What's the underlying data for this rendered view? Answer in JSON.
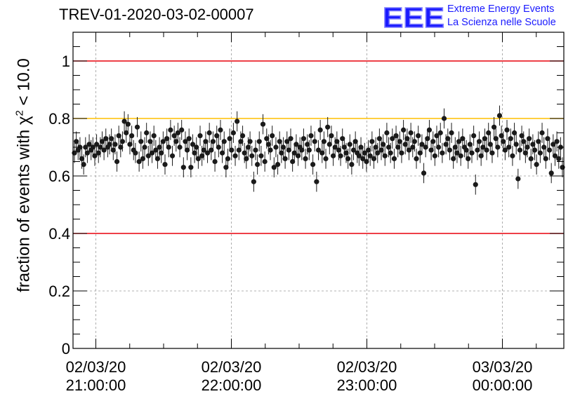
{
  "header": {
    "run_id": "TREV-01-2020-03-02-00007",
    "logo_letters": "EEE",
    "logo_line1": "Extreme Energy Events",
    "logo_line2": "La Scienza nelle Scuole"
  },
  "colors": {
    "threshold_red": "#e8000b",
    "threshold_orange": "#ffbf00",
    "marker": "#1a1a1a",
    "logo_blue": "#1a1aff"
  },
  "chart_data": {
    "type": "scatter",
    "title": "TREV-01-2020-03-02-00007",
    "xlabel": "",
    "ylabel_prefix": "fraction of events with ",
    "ylabel_symbol": "χ",
    "ylabel_exp": "2",
    "ylabel_suffix": " < 10.0",
    "ylim": [
      0,
      1.1
    ],
    "yticks": [
      0,
      0.2,
      0.4,
      0.6,
      0.8,
      1
    ],
    "ytick_labels": [
      "0",
      "0.2",
      "0.4",
      "0.6",
      "0.8",
      "1"
    ],
    "xlim_hours_note": "",
    "xticks": [
      {
        "date": "02/03/20",
        "time": "21:00:00"
      },
      {
        "date": "02/03/20",
        "time": "22:00:00"
      },
      {
        "date": "02/03/20",
        "time": "23:00:00"
      },
      {
        "date": "03/03/20",
        "time": "00:00:00"
      }
    ],
    "grid": true,
    "reference_lines": [
      {
        "y": 1.0,
        "color": "red"
      },
      {
        "y": 0.8,
        "color": "orange"
      },
      {
        "y": 0.4,
        "color": "red"
      }
    ],
    "error": 0.035,
    "x_start": "2020-03-02 20:50",
    "x_end": "2020-03-03 00:30",
    "values": [
      0.68,
      0.72,
      0.69,
      0.7,
      0.66,
      0.64,
      0.7,
      0.68,
      0.71,
      0.69,
      0.7,
      0.67,
      0.71,
      0.68,
      0.7,
      0.72,
      0.69,
      0.73,
      0.7,
      0.71,
      0.73,
      0.69,
      0.71,
      0.65,
      0.74,
      0.7,
      0.72,
      0.79,
      0.75,
      0.78,
      0.71,
      0.74,
      0.69,
      0.68,
      0.77,
      0.65,
      0.72,
      0.66,
      0.7,
      0.75,
      0.67,
      0.72,
      0.68,
      0.74,
      0.69,
      0.66,
      0.7,
      0.68,
      0.72,
      0.64,
      0.73,
      0.7,
      0.76,
      0.67,
      0.74,
      0.72,
      0.75,
      0.7,
      0.76,
      0.63,
      0.72,
      0.69,
      0.73,
      0.63,
      0.71,
      0.68,
      0.7,
      0.66,
      0.74,
      0.67,
      0.69,
      0.72,
      0.68,
      0.75,
      0.69,
      0.72,
      0.65,
      0.74,
      0.7,
      0.76,
      0.68,
      0.72,
      0.63,
      0.66,
      0.73,
      0.69,
      0.75,
      0.67,
      0.79,
      0.69,
      0.72,
      0.74,
      0.68,
      0.66,
      0.7,
      0.72,
      0.67,
      0.58,
      0.69,
      0.64,
      0.72,
      0.67,
      0.78,
      0.65,
      0.73,
      0.71,
      0.69,
      0.74,
      0.63,
      0.7,
      0.64,
      0.72,
      0.68,
      0.7,
      0.66,
      0.72,
      0.69,
      0.73,
      0.65,
      0.68,
      0.71,
      0.67,
      0.7,
      0.69,
      0.73,
      0.66,
      0.71,
      0.69,
      0.74,
      0.64,
      0.72,
      0.58,
      0.69,
      0.76,
      0.68,
      0.72,
      0.66,
      0.77,
      0.71,
      0.74,
      0.67,
      0.7,
      0.72,
      0.69,
      0.67,
      0.73,
      0.7,
      0.68,
      0.66,
      0.71,
      0.64,
      0.69,
      0.72,
      0.68,
      0.67,
      0.7,
      0.66,
      0.68,
      0.65,
      0.69,
      0.67,
      0.72,
      0.66,
      0.7,
      0.68,
      0.73,
      0.69,
      0.71,
      0.67,
      0.75,
      0.7,
      0.68,
      0.73,
      0.66,
      0.74,
      0.7,
      0.72,
      0.68,
      0.76,
      0.71,
      0.73,
      0.69,
      0.75,
      0.7,
      0.72,
      0.66,
      0.74,
      0.68,
      0.71,
      0.61,
      0.7,
      0.73,
      0.76,
      0.69,
      0.72,
      0.67,
      0.74,
      0.7,
      0.75,
      0.68,
      0.8,
      0.71,
      0.73,
      0.69,
      0.75,
      0.66,
      0.7,
      0.68,
      0.72,
      0.67,
      0.73,
      0.7,
      0.69,
      0.66,
      0.71,
      0.68,
      0.74,
      0.57,
      0.69,
      0.72,
      0.67,
      0.7,
      0.73,
      0.69,
      0.75,
      0.71,
      0.68,
      0.77,
      0.73,
      0.7,
      0.81,
      0.74,
      0.72,
      0.69,
      0.76,
      0.7,
      0.73,
      0.67,
      0.75,
      0.71,
      0.59,
      0.69,
      0.74,
      0.72,
      0.68,
      0.7,
      0.73,
      0.66,
      0.71,
      0.69,
      0.64,
      0.72,
      0.68,
      0.75,
      0.7,
      0.66,
      0.73,
      0.69,
      0.61,
      0.71,
      0.67,
      0.72,
      0.66,
      0.7,
      0.63
    ]
  }
}
